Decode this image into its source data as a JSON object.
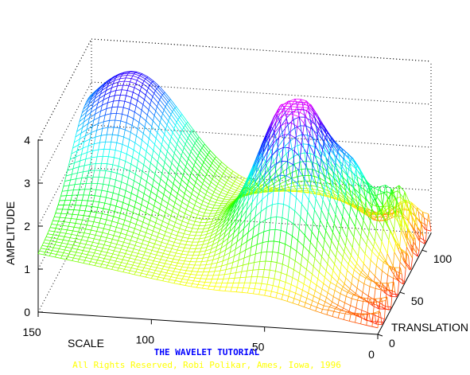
{
  "chart_data": {
    "type": "mesh3d",
    "title": "",
    "xlabel": "SCALE",
    "ylabel": "TRANSLATION",
    "zlabel": "AMPLITUDE",
    "x_ticks": [
      150,
      100,
      50,
      0
    ],
    "y_ticks": [
      0,
      50,
      100
    ],
    "z_ticks": [
      0,
      1,
      2,
      3,
      4
    ],
    "xlim": [
      0,
      150
    ],
    "ylim": [
      0,
      120
    ],
    "zlim": [
      0,
      4
    ],
    "grid": true,
    "colormap": "hsv",
    "description_values": {
      "surface": "amplitude of continuous wavelet transform vs scale and translation; peak ~3.9 near scale 40-50, translation ~60"
    }
  },
  "captions": {
    "title": "THE WAVELET TUTORIAL",
    "copyright": "All Rights Reserved, Robi Polikar, Ames, Iowa, 1996"
  }
}
